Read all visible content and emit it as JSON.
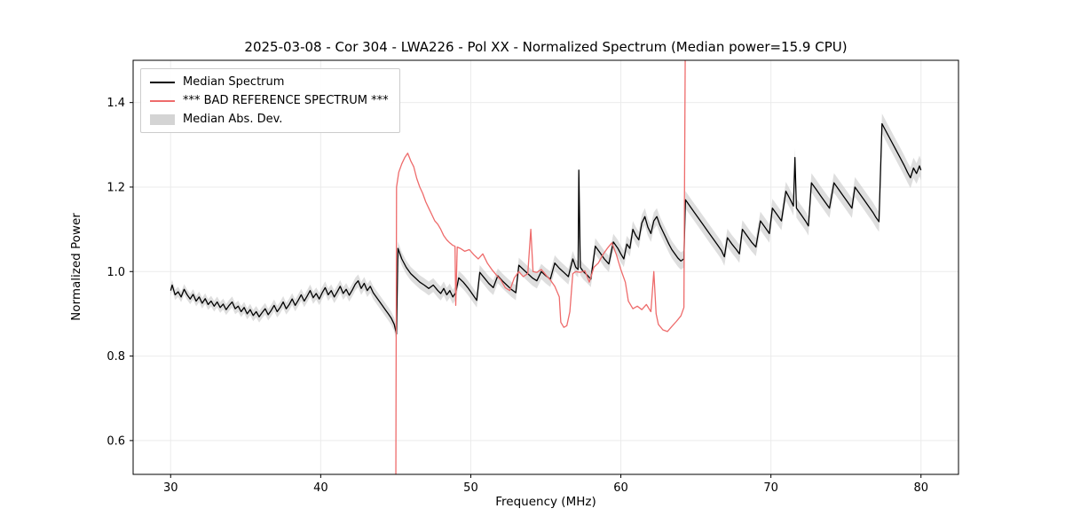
{
  "title": "2025-03-08 - Cor 304 - LWA226 - Pol XX - Normalized Spectrum (Median power=15.9 CPU)",
  "chart_data": {
    "type": "line",
    "title": "2025-03-08 - Cor 304 - LWA226 - Pol XX - Normalized Spectrum (Median power=15.9 CPU)",
    "xlabel": "Frequency (MHz)",
    "ylabel": "Normalized Power",
    "xlim": [
      27.5,
      82.5
    ],
    "ylim": [
      0.52,
      1.5
    ],
    "xticks": [
      30,
      40,
      50,
      60,
      70,
      80
    ],
    "xtick_labels": [
      "30",
      "40",
      "50",
      "60",
      "70",
      "80"
    ],
    "yticks": [
      0.6,
      0.8,
      1.0,
      1.2,
      1.4
    ],
    "ytick_labels": [
      "0.6",
      "0.8",
      "1.0",
      "1.2",
      "1.4"
    ],
    "grid": true,
    "legend_position": "upper left",
    "colors": {
      "median": "#000000",
      "bad_reference": "#ee6b6b",
      "mad_band": "#c8c8c8"
    },
    "band": {
      "base_halfwidth": 0.012,
      "halfwidth_slope_per_mhz": 0.00025
    },
    "series": [
      {
        "name": "Median Spectrum",
        "color_key": "median",
        "points": [
          [
            30.0,
            0.955
          ],
          [
            30.1,
            0.968
          ],
          [
            30.3,
            0.945
          ],
          [
            30.5,
            0.952
          ],
          [
            30.7,
            0.94
          ],
          [
            30.9,
            0.958
          ],
          [
            31.1,
            0.945
          ],
          [
            31.3,
            0.935
          ],
          [
            31.5,
            0.946
          ],
          [
            31.7,
            0.93
          ],
          [
            31.9,
            0.94
          ],
          [
            32.1,
            0.925
          ],
          [
            32.3,
            0.936
          ],
          [
            32.5,
            0.922
          ],
          [
            32.7,
            0.93
          ],
          [
            32.9,
            0.918
          ],
          [
            33.1,
            0.928
          ],
          [
            33.3,
            0.915
          ],
          [
            33.5,
            0.923
          ],
          [
            33.7,
            0.91
          ],
          [
            33.9,
            0.92
          ],
          [
            34.1,
            0.928
          ],
          [
            34.3,
            0.912
          ],
          [
            34.5,
            0.918
          ],
          [
            34.7,
            0.905
          ],
          [
            34.9,
            0.915
          ],
          [
            35.1,
            0.9
          ],
          [
            35.3,
            0.91
          ],
          [
            35.5,
            0.896
          ],
          [
            35.7,
            0.905
          ],
          [
            35.9,
            0.893
          ],
          [
            36.1,
            0.903
          ],
          [
            36.3,
            0.912
          ],
          [
            36.5,
            0.898
          ],
          [
            36.7,
            0.908
          ],
          [
            36.9,
            0.92
          ],
          [
            37.1,
            0.905
          ],
          [
            37.3,
            0.915
          ],
          [
            37.5,
            0.928
          ],
          [
            37.7,
            0.912
          ],
          [
            37.9,
            0.922
          ],
          [
            38.1,
            0.935
          ],
          [
            38.3,
            0.92
          ],
          [
            38.5,
            0.932
          ],
          [
            38.7,
            0.945
          ],
          [
            38.9,
            0.93
          ],
          [
            39.1,
            0.942
          ],
          [
            39.3,
            0.955
          ],
          [
            39.5,
            0.938
          ],
          [
            39.7,
            0.948
          ],
          [
            39.9,
            0.935
          ],
          [
            40.1,
            0.95
          ],
          [
            40.3,
            0.962
          ],
          [
            40.5,
            0.945
          ],
          [
            40.7,
            0.955
          ],
          [
            40.9,
            0.94
          ],
          [
            41.1,
            0.952
          ],
          [
            41.3,
            0.965
          ],
          [
            41.5,
            0.948
          ],
          [
            41.7,
            0.958
          ],
          [
            41.9,
            0.944
          ],
          [
            42.1,
            0.956
          ],
          [
            42.3,
            0.97
          ],
          [
            42.5,
            0.978
          ],
          [
            42.7,
            0.96
          ],
          [
            42.9,
            0.972
          ],
          [
            43.1,
            0.955
          ],
          [
            43.3,
            0.965
          ],
          [
            43.5,
            0.95
          ],
          [
            43.7,
            0.94
          ],
          [
            43.9,
            0.93
          ],
          [
            44.1,
            0.92
          ],
          [
            44.3,
            0.91
          ],
          [
            44.5,
            0.9
          ],
          [
            44.7,
            0.89
          ],
          [
            44.9,
            0.875
          ],
          [
            45.05,
            0.852
          ],
          [
            45.15,
            1.055
          ],
          [
            45.4,
            1.03
          ],
          [
            45.7,
            1.01
          ],
          [
            46.0,
            0.995
          ],
          [
            46.3,
            0.985
          ],
          [
            46.6,
            0.975
          ],
          [
            46.9,
            0.968
          ],
          [
            47.2,
            0.96
          ],
          [
            47.5,
            0.968
          ],
          [
            47.8,
            0.955
          ],
          [
            48.0,
            0.948
          ],
          [
            48.2,
            0.96
          ],
          [
            48.4,
            0.945
          ],
          [
            48.6,
            0.955
          ],
          [
            48.8,
            0.94
          ],
          [
            49.0,
            0.95
          ],
          [
            49.2,
            0.985
          ],
          [
            49.5,
            0.975
          ],
          [
            49.8,
            0.962
          ],
          [
            50.0,
            0.952
          ],
          [
            50.2,
            0.942
          ],
          [
            50.4,
            0.932
          ],
          [
            50.6,
            0.998
          ],
          [
            50.9,
            0.985
          ],
          [
            51.2,
            0.972
          ],
          [
            51.5,
            0.962
          ],
          [
            51.8,
            0.99
          ],
          [
            52.1,
            0.978
          ],
          [
            52.4,
            0.968
          ],
          [
            52.7,
            0.958
          ],
          [
            53.0,
            0.95
          ],
          [
            53.2,
            1.015
          ],
          [
            53.5,
            1.005
          ],
          [
            53.8,
            0.995
          ],
          [
            54.1,
            0.985
          ],
          [
            54.4,
            0.978
          ],
          [
            54.7,
            1.0
          ],
          [
            55.0,
            0.99
          ],
          [
            55.3,
            0.982
          ],
          [
            55.6,
            1.02
          ],
          [
            55.9,
            1.008
          ],
          [
            56.2,
            0.998
          ],
          [
            56.5,
            0.988
          ],
          [
            56.8,
            1.03
          ],
          [
            57.0,
            1.01
          ],
          [
            57.15,
            1.005
          ],
          [
            57.2,
            1.24
          ],
          [
            57.3,
            1.01
          ],
          [
            57.5,
            1.0
          ],
          [
            57.8,
            0.99
          ],
          [
            58.0,
            0.982
          ],
          [
            58.3,
            1.06
          ],
          [
            58.6,
            1.045
          ],
          [
            58.9,
            1.03
          ],
          [
            59.2,
            1.018
          ],
          [
            59.5,
            1.07
          ],
          [
            59.8,
            1.055
          ],
          [
            60.0,
            1.042
          ],
          [
            60.2,
            1.03
          ],
          [
            60.4,
            1.065
          ],
          [
            60.6,
            1.055
          ],
          [
            60.8,
            1.1
          ],
          [
            61.0,
            1.085
          ],
          [
            61.2,
            1.075
          ],
          [
            61.4,
            1.115
          ],
          [
            61.6,
            1.13
          ],
          [
            61.8,
            1.105
          ],
          [
            62.0,
            1.09
          ],
          [
            62.2,
            1.12
          ],
          [
            62.4,
            1.13
          ],
          [
            62.6,
            1.11
          ],
          [
            62.8,
            1.095
          ],
          [
            63.0,
            1.08
          ],
          [
            63.2,
            1.065
          ],
          [
            63.4,
            1.052
          ],
          [
            63.6,
            1.042
          ],
          [
            63.8,
            1.032
          ],
          [
            64.0,
            1.025
          ],
          [
            64.2,
            1.03
          ],
          [
            64.3,
            1.17
          ],
          [
            64.6,
            1.155
          ],
          [
            64.9,
            1.14
          ],
          [
            65.2,
            1.125
          ],
          [
            65.5,
            1.11
          ],
          [
            65.8,
            1.095
          ],
          [
            66.1,
            1.08
          ],
          [
            66.4,
            1.065
          ],
          [
            66.7,
            1.05
          ],
          [
            66.9,
            1.035
          ],
          [
            67.1,
            1.08
          ],
          [
            67.4,
            1.065
          ],
          [
            67.7,
            1.052
          ],
          [
            67.9,
            1.042
          ],
          [
            68.1,
            1.1
          ],
          [
            68.4,
            1.085
          ],
          [
            68.7,
            1.07
          ],
          [
            69.0,
            1.058
          ],
          [
            69.3,
            1.12
          ],
          [
            69.6,
            1.105
          ],
          [
            69.9,
            1.09
          ],
          [
            70.1,
            1.15
          ],
          [
            70.4,
            1.135
          ],
          [
            70.7,
            1.12
          ],
          [
            71.0,
            1.19
          ],
          [
            71.3,
            1.17
          ],
          [
            71.5,
            1.155
          ],
          [
            71.6,
            1.27
          ],
          [
            71.7,
            1.15
          ],
          [
            72.0,
            1.135
          ],
          [
            72.3,
            1.12
          ],
          [
            72.5,
            1.108
          ],
          [
            72.7,
            1.21
          ],
          [
            73.0,
            1.195
          ],
          [
            73.3,
            1.18
          ],
          [
            73.6,
            1.165
          ],
          [
            73.9,
            1.15
          ],
          [
            74.2,
            1.21
          ],
          [
            74.5,
            1.195
          ],
          [
            74.8,
            1.18
          ],
          [
            75.1,
            1.165
          ],
          [
            75.4,
            1.15
          ],
          [
            75.6,
            1.2
          ],
          [
            75.9,
            1.185
          ],
          [
            76.2,
            1.17
          ],
          [
            76.5,
            1.155
          ],
          [
            76.8,
            1.14
          ],
          [
            77.0,
            1.128
          ],
          [
            77.2,
            1.118
          ],
          [
            77.4,
            1.35
          ],
          [
            77.7,
            1.33
          ],
          [
            78.0,
            1.31
          ],
          [
            78.3,
            1.29
          ],
          [
            78.6,
            1.27
          ],
          [
            78.9,
            1.25
          ],
          [
            79.1,
            1.235
          ],
          [
            79.3,
            1.222
          ],
          [
            79.5,
            1.245
          ],
          [
            79.7,
            1.232
          ],
          [
            79.9,
            1.25
          ],
          [
            80.0,
            1.24
          ]
        ]
      },
      {
        "name": "*** BAD REFERENCE SPECTRUM ***",
        "color_key": "bad_reference",
        "points": [
          [
            45.0,
            0.4
          ],
          [
            45.05,
            1.2
          ],
          [
            45.2,
            1.235
          ],
          [
            45.4,
            1.255
          ],
          [
            45.6,
            1.27
          ],
          [
            45.8,
            1.28
          ],
          [
            46.0,
            1.262
          ],
          [
            46.2,
            1.248
          ],
          [
            46.4,
            1.22
          ],
          [
            46.6,
            1.2
          ],
          [
            46.8,
            1.185
          ],
          [
            47.0,
            1.165
          ],
          [
            47.2,
            1.15
          ],
          [
            47.4,
            1.135
          ],
          [
            47.6,
            1.12
          ],
          [
            47.8,
            1.112
          ],
          [
            48.0,
            1.1
          ],
          [
            48.2,
            1.085
          ],
          [
            48.4,
            1.075
          ],
          [
            48.6,
            1.068
          ],
          [
            48.8,
            1.062
          ],
          [
            48.95,
            1.06
          ],
          [
            49.0,
            0.92
          ],
          [
            49.1,
            1.058
          ],
          [
            49.3,
            1.055
          ],
          [
            49.6,
            1.048
          ],
          [
            49.9,
            1.052
          ],
          [
            50.2,
            1.04
          ],
          [
            50.5,
            1.03
          ],
          [
            50.8,
            1.042
          ],
          [
            51.1,
            1.02
          ],
          [
            51.4,
            1.005
          ],
          [
            51.7,
            0.992
          ],
          [
            52.0,
            0.98
          ],
          [
            52.3,
            0.962
          ],
          [
            52.6,
            0.955
          ],
          [
            52.9,
            0.985
          ],
          [
            53.2,
            1.0
          ],
          [
            53.5,
            0.988
          ],
          [
            53.8,
            0.995
          ],
          [
            54.0,
            1.1
          ],
          [
            54.15,
            1.0
          ],
          [
            54.4,
            0.998
          ],
          [
            54.7,
            1.005
          ],
          [
            55.0,
            0.992
          ],
          [
            55.3,
            0.98
          ],
          [
            55.6,
            0.965
          ],
          [
            55.9,
            0.94
          ],
          [
            56.0,
            0.88
          ],
          [
            56.2,
            0.868
          ],
          [
            56.4,
            0.872
          ],
          [
            56.6,
            0.905
          ],
          [
            56.8,
            0.995
          ],
          [
            57.0,
            1.0
          ],
          [
            57.3,
            0.998
          ],
          [
            57.6,
            1.002
          ],
          [
            57.9,
            0.975
          ],
          [
            58.2,
            1.01
          ],
          [
            58.5,
            1.02
          ],
          [
            58.8,
            1.04
          ],
          [
            59.1,
            1.055
          ],
          [
            59.4,
            1.068
          ],
          [
            59.7,
            1.04
          ],
          [
            60.0,
            1.005
          ],
          [
            60.3,
            0.975
          ],
          [
            60.5,
            0.93
          ],
          [
            60.8,
            0.912
          ],
          [
            61.1,
            0.918
          ],
          [
            61.4,
            0.91
          ],
          [
            61.7,
            0.922
          ],
          [
            62.0,
            0.905
          ],
          [
            62.2,
            1.0
          ],
          [
            62.35,
            0.9
          ],
          [
            62.5,
            0.875
          ],
          [
            62.8,
            0.862
          ],
          [
            63.1,
            0.858
          ],
          [
            63.4,
            0.87
          ],
          [
            63.7,
            0.882
          ],
          [
            64.0,
            0.895
          ],
          [
            64.2,
            0.915
          ],
          [
            64.3,
            1.6
          ]
        ]
      },
      {
        "name": "Median Abs. Dev.",
        "color_key": "mad_band",
        "render_as": "band"
      }
    ]
  }
}
